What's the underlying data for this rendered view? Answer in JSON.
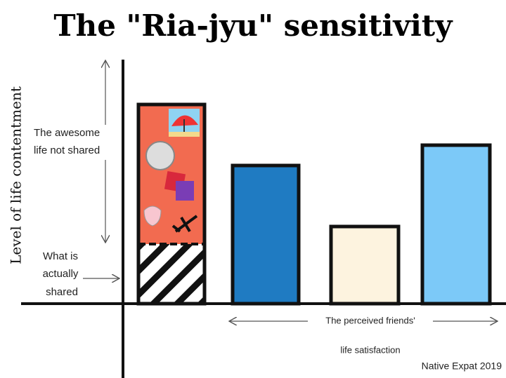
{
  "title": "The \"Ria-jyu\" sensitivity",
  "y_axis_label": "Level of life contentment",
  "annotations": {
    "not_shared": [
      "The awesome",
      "life not shared"
    ],
    "shared": [
      "What is",
      "actually",
      "shared"
    ],
    "x_axis_label": [
      "The perceived friends'",
      "life satisfaction"
    ]
  },
  "credit": "Native Expat 2019"
}
